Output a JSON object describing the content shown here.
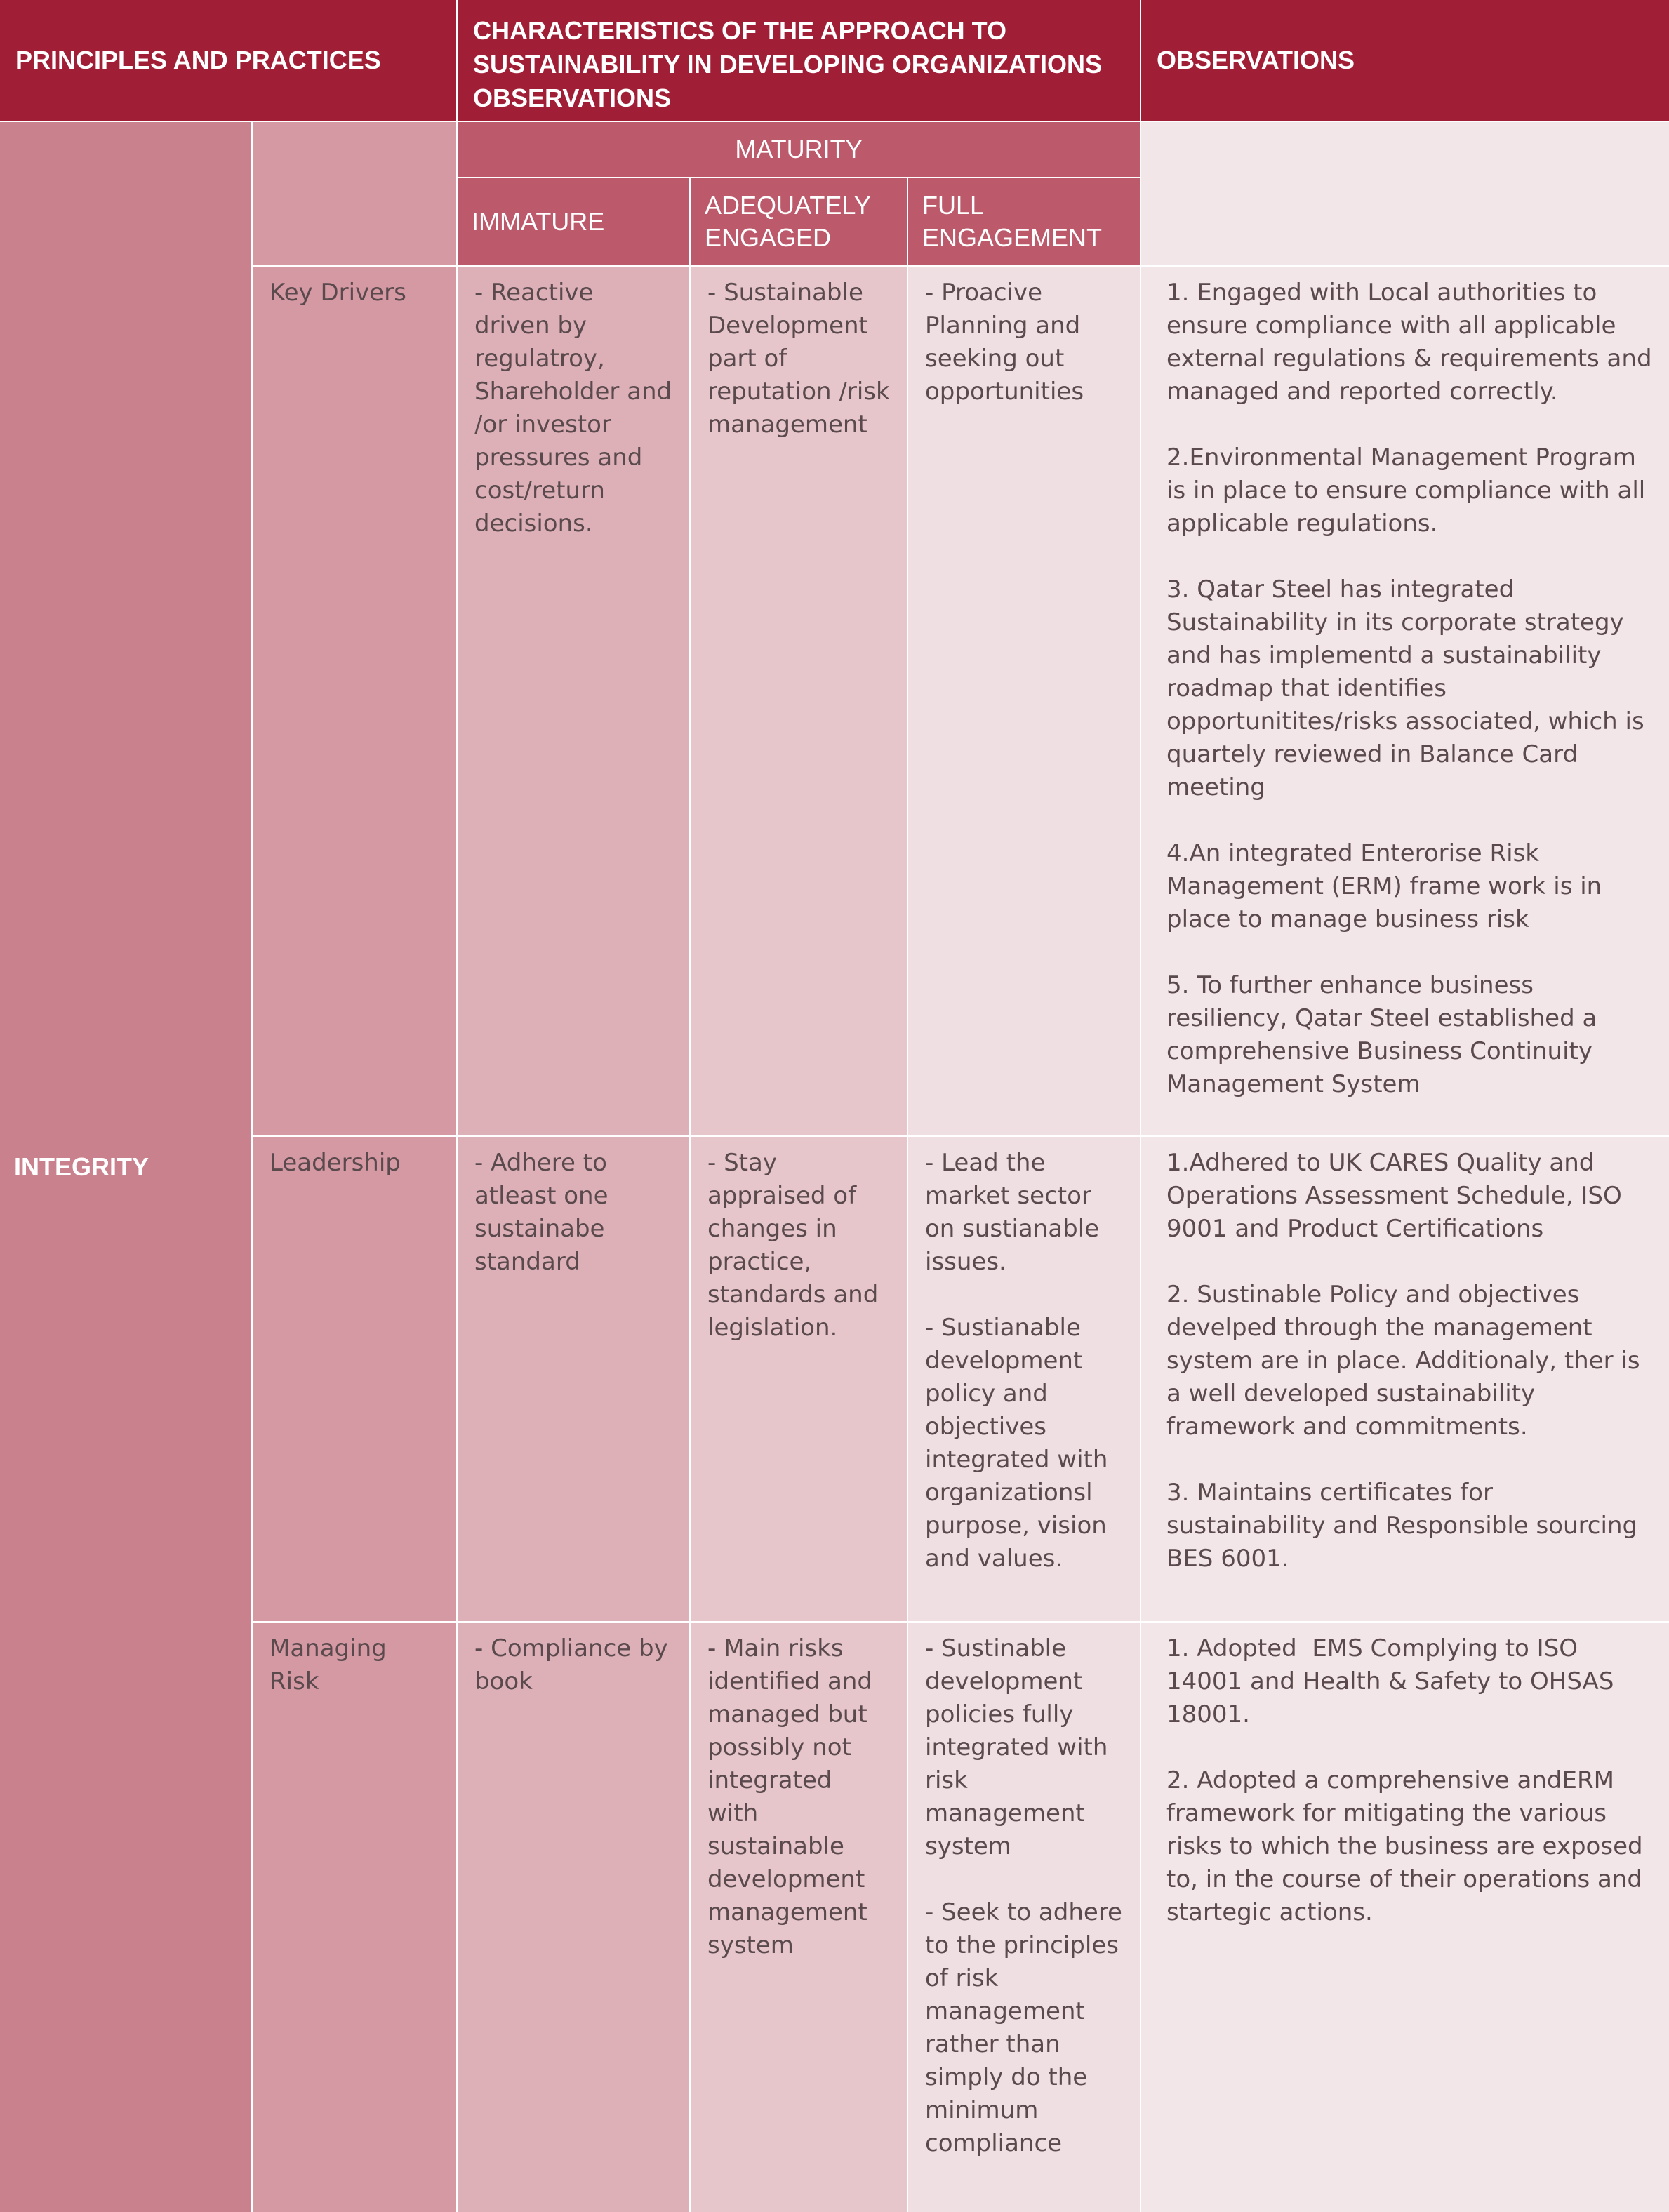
{
  "header": {
    "principles": "PRINCIPLES AND PRACTICES",
    "characteristics": "CHARACTERISTICS OF THE APPROACH TO SUSTAINABILITY IN DEVELOPING ORGANIZATIONS OBSERVATIONS",
    "observations": "OBSERVATIONS"
  },
  "maturity": {
    "label": "MATURITY",
    "immature": "IMMATURE",
    "adequately_engaged": "ADEQUATELY ENGAGED",
    "full_engagement": "FULL ENGAGEMENT"
  },
  "principle": "INTEGRITY",
  "rows": [
    {
      "practice": "Key Drivers",
      "immature": [
        "- Reactive driven by regulatroy, Shareholder and /or investor pressures and cost/return decisions."
      ],
      "adequate": [
        "- Sustainable Development part of reputation /risk management"
      ],
      "full": [
        "- Proacive Planning and seeking out opportunities"
      ],
      "observations": [
        "1. Engaged with Local authorities to ensure compliance with all applicable external regulations & requirements and managed and reported correctly.",
        "2.Environmental Management Program is in place to ensure compliance with all applicable regulations.",
        "3. Qatar Steel has integrated Sustainability in its corporate strategy and has implementd a sustainability roadmap that identifies opportunitites/risks associated, which is quartely reviewed in Balance Card meeting",
        "4.An integrated Enterorise Risk Management (ERM) frame work is in place to manage business risk",
        "5. To further enhance business resiliency, Qatar Steel established a comprehensive Business Continuity Management System"
      ]
    },
    {
      "practice": "Leadership",
      "immature": [
        "- Adhere to atleast one sustainabe standard"
      ],
      "adequate": [
        "- Stay appraised of changes in practice, standards and legislation."
      ],
      "full": [
        "- Lead the market sector on sustianable issues.",
        "- Sustianable development policy and objectives integrated with organizationsl purpose, vision and values."
      ],
      "observations": [
        "1.Adhered to UK CARES Quality and Operations Assessment Schedule, ISO 9001 and Product Certifications",
        "2. Sustinable Policy and objectives develped through the management system are in place. Additionaly, ther is a well developed sustainability framework and commitments.",
        "3. Maintains certificates for sustainability and Responsible sourcing BES 6001."
      ]
    },
    {
      "practice": "Managing Risk",
      "immature": [
        "- Compliance by book"
      ],
      "adequate": [
        "- Main risks identified and managed but possibly not integrated with sustainable development management system"
      ],
      "full": [
        "- Sustinable development policies fully integrated with risk management system",
        "- Seek to adhere to the principles of risk management rather than simply do the minimum compliance"
      ],
      "observations": [
        "1. Adopted  EMS Complying to ISO 14001 and Health & Safety to OHSAS 18001.",
        "2. Adopted a comprehensive andERM framework for mitigating the various risks to which the business are exposed to, in the course of their operations and startegic actions."
      ]
    }
  ]
}
